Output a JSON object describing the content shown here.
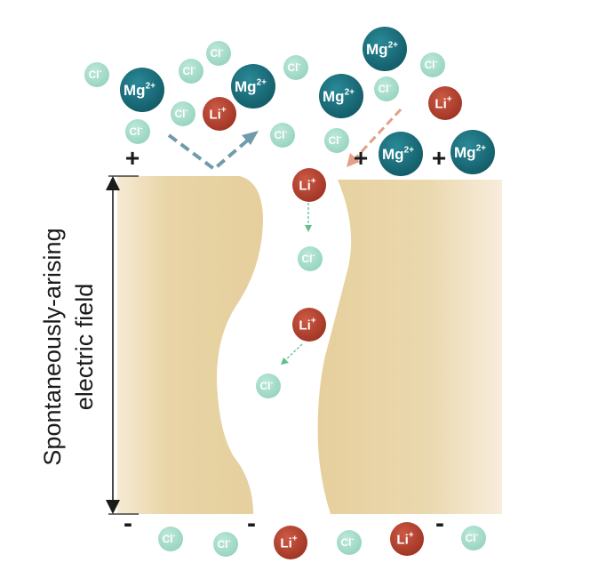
{
  "field_label": {
    "line1": "Spontaneously-arising",
    "line2": "electric field"
  },
  "ion_labels": {
    "mg": "Mg",
    "mg_charge": "2+",
    "li": "Li",
    "li_charge": "+",
    "cl": "Cl",
    "cl_charge": "-"
  },
  "charge_signs": {
    "positive": "+",
    "negative": "-"
  },
  "colors": {
    "mg": "#1b6e7c",
    "li": "#b5412e",
    "cl": "#a3dccb",
    "membrane": "#e8d3a3",
    "membrane_light": "#f7ecd6",
    "reject_arrow": "#6f9bab",
    "enter_arrow": "#e2a089",
    "transport_arrow": "#5fbf8f"
  }
}
